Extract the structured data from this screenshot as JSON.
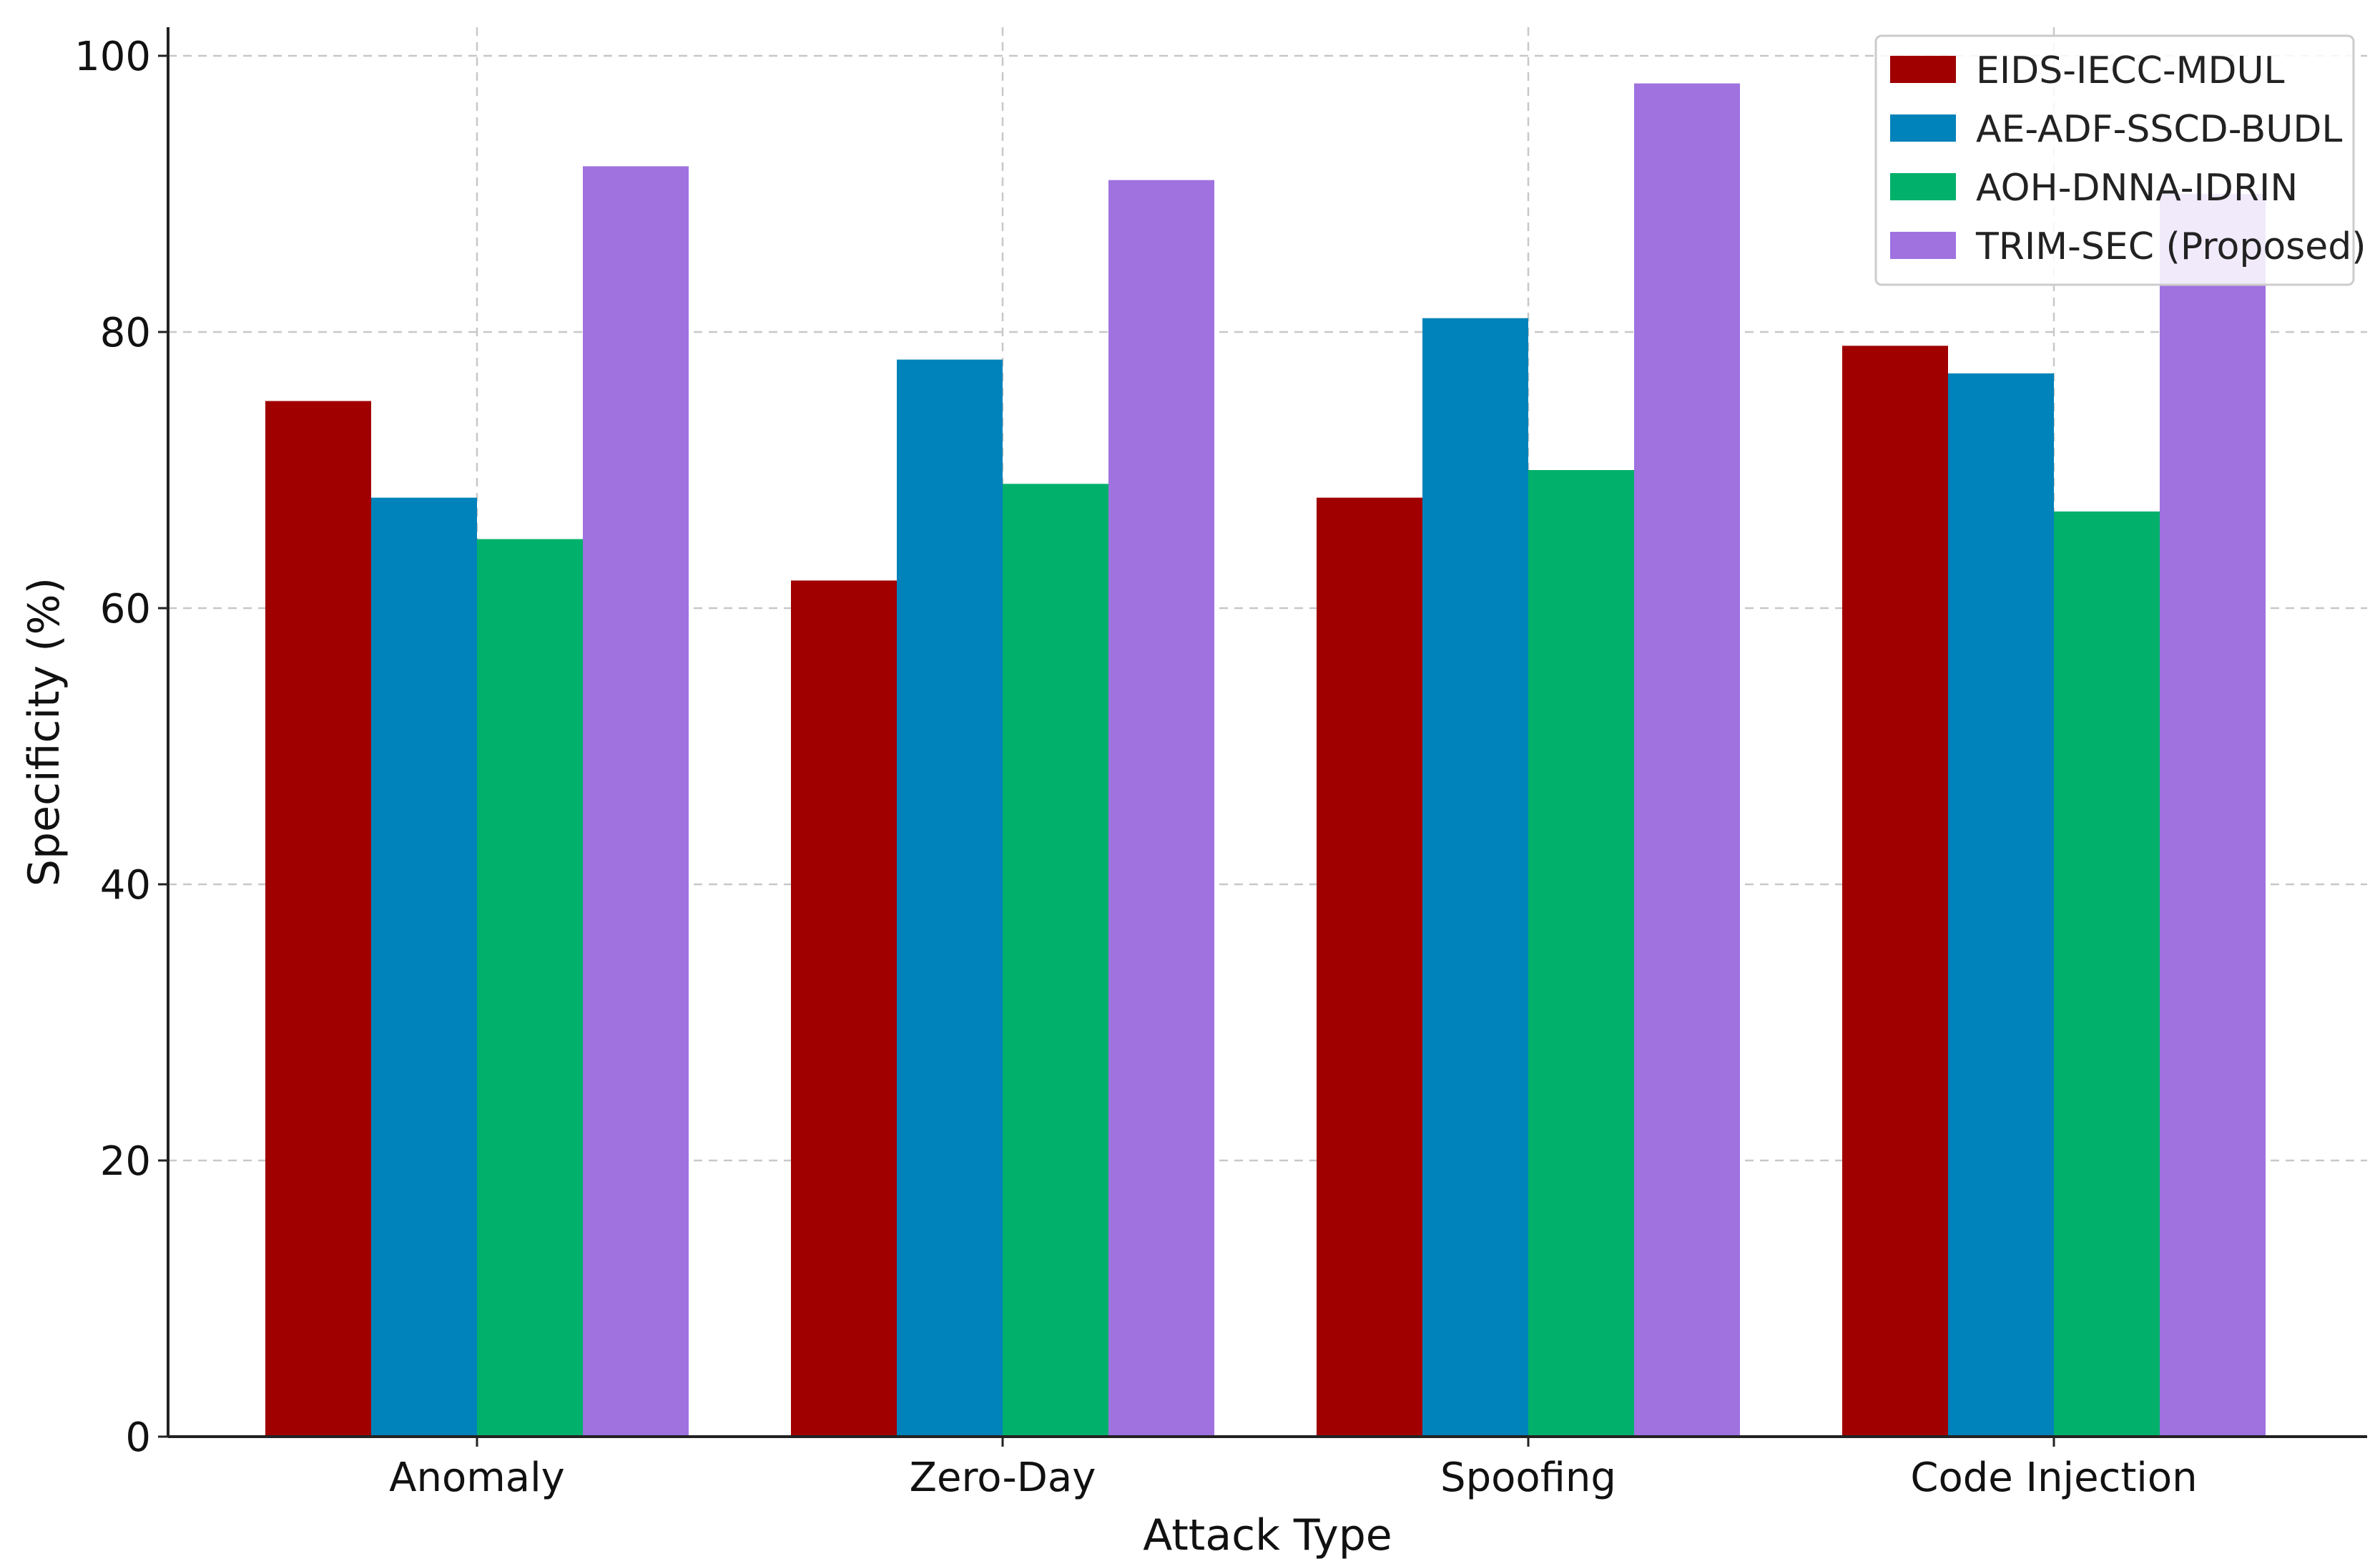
{
  "chart_data": {
    "type": "bar",
    "title": "",
    "xlabel": "Attack Type",
    "ylabel": "Specificity (%)",
    "ylim": [
      0,
      100
    ],
    "yticks": [
      0,
      20,
      40,
      60,
      80,
      100
    ],
    "grid": true,
    "legend_position": "top-right",
    "categories": [
      "Anomaly",
      "Zero-Day",
      "Spoofing",
      "Code Injection"
    ],
    "series": [
      {
        "name": "EIDS-IECC-MDUL",
        "color": "#a00000",
        "values": [
          75,
          62,
          68,
          79
        ]
      },
      {
        "name": "AE-ADF-SSCD-BUDL",
        "color": "#0082ba",
        "values": [
          68,
          78,
          81,
          77
        ]
      },
      {
        "name": "AOH-DNNA-IDRIN",
        "color": "#00b06b",
        "values": [
          65,
          69,
          70,
          67
        ]
      },
      {
        "name": "TRIM-SEC (Proposed)",
        "color": "#9f72e0",
        "values": [
          92,
          91,
          98,
          90
        ]
      }
    ]
  }
}
